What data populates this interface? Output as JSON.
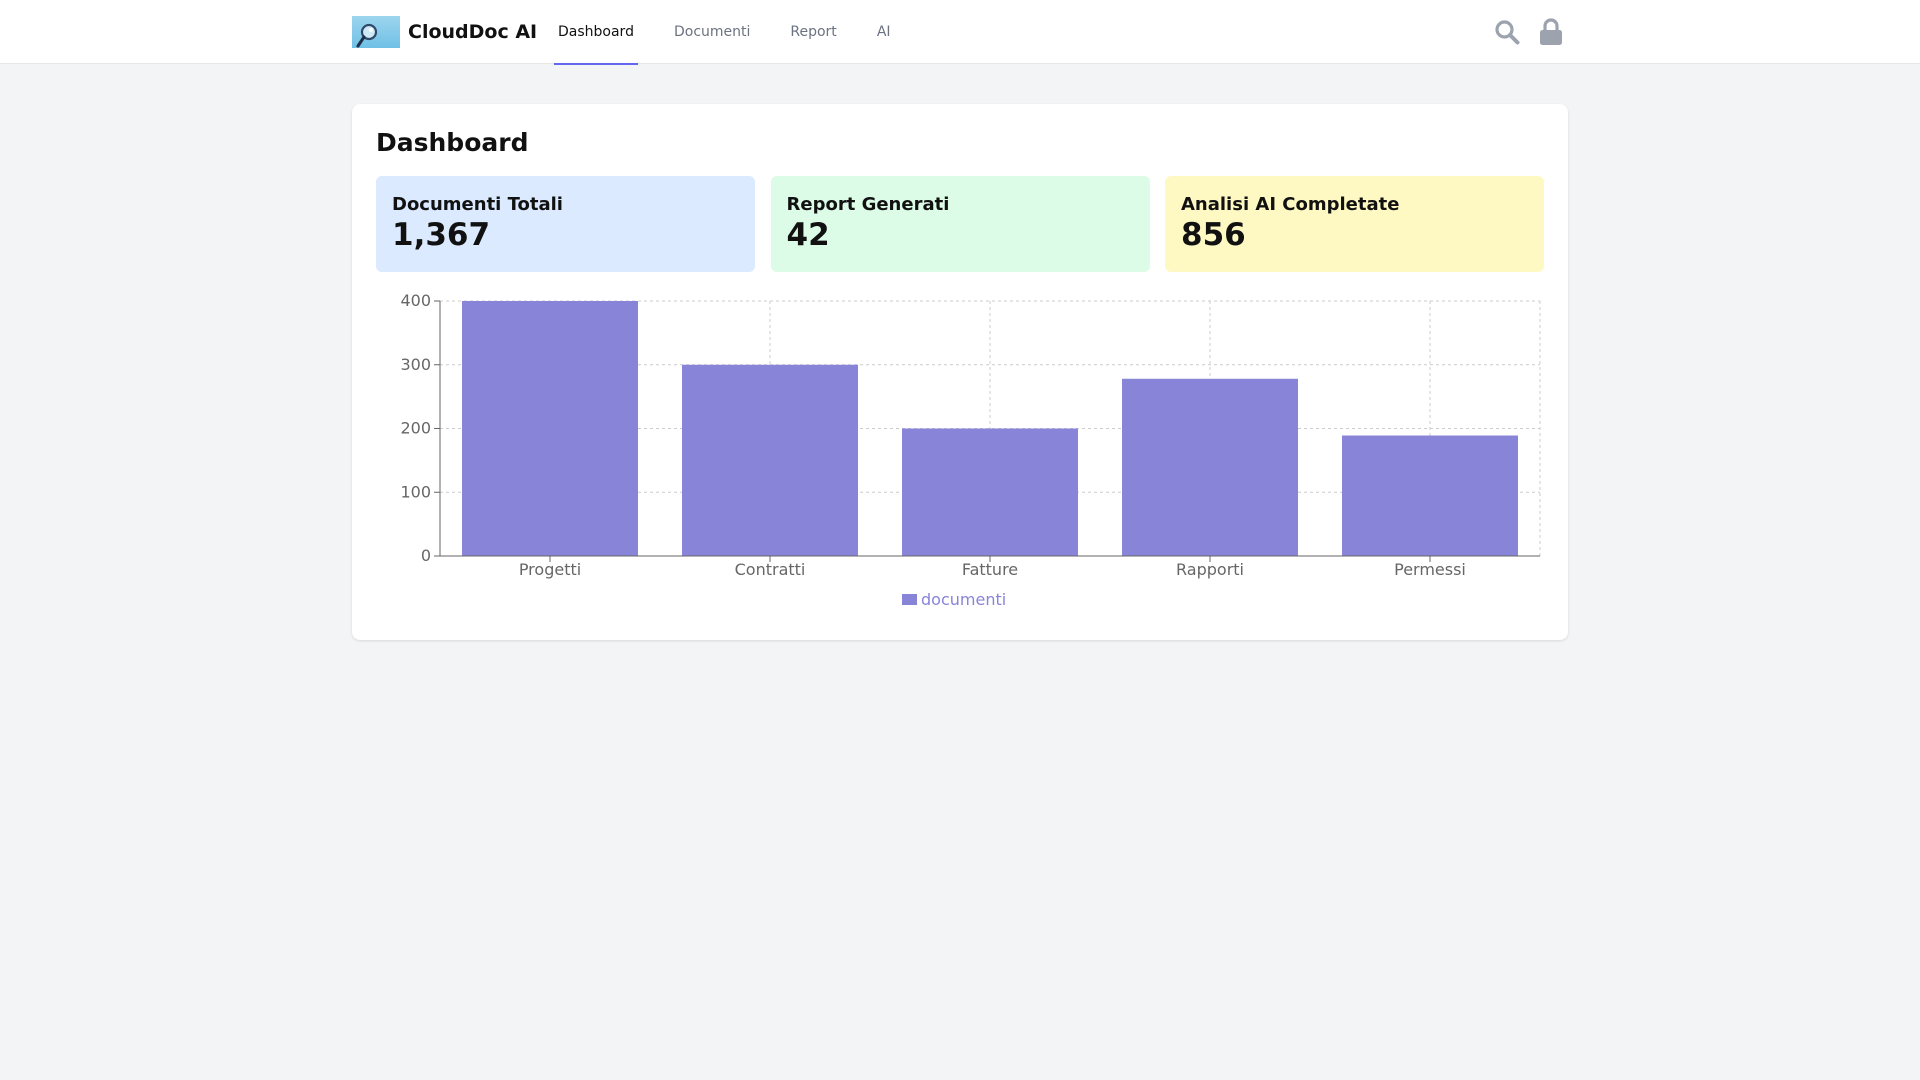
{
  "app": {
    "name": "CloudDoc AI",
    "logo_icon": "magnifier-logo-icon"
  },
  "nav": {
    "items": [
      {
        "label": "Dashboard",
        "active": true
      },
      {
        "label": "Documenti",
        "active": false
      },
      {
        "label": "Report",
        "active": false
      },
      {
        "label": "AI",
        "active": false
      }
    ],
    "accent": "#6366f1"
  },
  "actions": {
    "search_icon": "search-icon",
    "lock_icon": "lock-icon",
    "icon_color": "#9ca3af"
  },
  "page": {
    "title": "Dashboard"
  },
  "stats": [
    {
      "label": "Documenti Totali",
      "value": "1,367",
      "color": "#dbeafe"
    },
    {
      "label": "Report Generati",
      "value": "42",
      "color": "#dcfce7"
    },
    {
      "label": "Analisi AI Completate",
      "value": "856",
      "color": "#fef9c3"
    }
  ],
  "chart_data": {
    "type": "bar",
    "categories": [
      "Progetti",
      "Contratti",
      "Fatture",
      "Rapporti",
      "Permessi"
    ],
    "series": [
      {
        "name": "documenti",
        "values": [
          400,
          300,
          200,
          278,
          189
        ],
        "color": "#8884d8"
      }
    ],
    "ylim": [
      0,
      400
    ],
    "yticks": [
      0,
      100,
      200,
      300,
      400
    ],
    "grid": true,
    "legend": "bottom-center"
  }
}
